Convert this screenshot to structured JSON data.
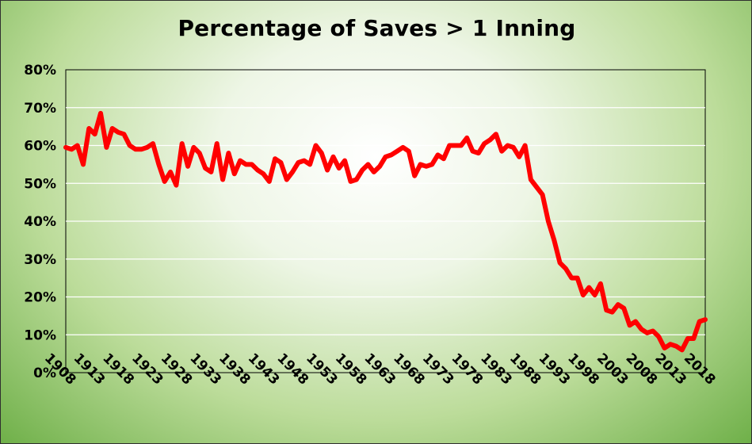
{
  "chart_data": {
    "type": "line",
    "title": "Percentage of Saves > 1 Inning",
    "xlabel": "",
    "ylabel": "",
    "ylim": [
      0,
      80
    ],
    "y_ticks": [
      "0%",
      "10%",
      "20%",
      "30%",
      "40%",
      "50%",
      "60%",
      "70%",
      "80%"
    ],
    "x_tick_labels": [
      "1908",
      "1913",
      "1918",
      "1923",
      "1928",
      "1933",
      "1938",
      "1943",
      "1948",
      "1953",
      "1958",
      "1963",
      "1968",
      "1973",
      "1978",
      "1983",
      "1988",
      "1993",
      "1998",
      "2003",
      "2008",
      "2013",
      "2018"
    ],
    "grid": true,
    "legend": "none",
    "line_color": "#ff0000",
    "series": [
      {
        "x": [
          1908,
          1909,
          1910,
          1911,
          1912,
          1913,
          1914,
          1915,
          1916,
          1917,
          1918,
          1919,
          1920,
          1921,
          1922,
          1923,
          1924,
          1925,
          1926,
          1927,
          1928,
          1929,
          1930,
          1931,
          1932,
          1933,
          1934,
          1935,
          1936,
          1937,
          1938,
          1939,
          1940,
          1941,
          1942,
          1943,
          1944,
          1945,
          1946,
          1947,
          1948,
          1949,
          1950,
          1951,
          1952,
          1953,
          1954,
          1955,
          1956,
          1957,
          1958,
          1959,
          1960,
          1961,
          1962,
          1963,
          1964,
          1965,
          1966,
          1967,
          1968,
          1969,
          1970,
          1971,
          1972,
          1973,
          1974,
          1975,
          1976,
          1977,
          1978,
          1979,
          1980,
          1981,
          1982,
          1983,
          1984,
          1985,
          1986,
          1987,
          1988,
          1989,
          1990,
          1991,
          1992,
          1993,
          1994,
          1995,
          1996,
          1997,
          1998,
          1999,
          2000,
          2001,
          2002,
          2003,
          2004,
          2005,
          2006,
          2007,
          2008,
          2009,
          2010,
          2011,
          2012,
          2013,
          2014,
          2015,
          2016,
          2017,
          2018
        ],
        "values": [
          59.5,
          59,
          60,
          55,
          64.5,
          63,
          68.5,
          59.5,
          64.5,
          63.5,
          63,
          60,
          59,
          59,
          59.5,
          60.5,
          55,
          50.5,
          53,
          49.5,
          60.5,
          54.5,
          59.5,
          58,
          54,
          53,
          60.5,
          51,
          58,
          52.5,
          56,
          55,
          55,
          53.5,
          52.5,
          50.5,
          56.5,
          55.5,
          51,
          53,
          55.5,
          56,
          55,
          60,
          58,
          53.5,
          57,
          54,
          56,
          50.5,
          51,
          53.5,
          55,
          53,
          54.5,
          57,
          57.5,
          58.5,
          59.5,
          58.5,
          52,
          55,
          54.5,
          55,
          57.5,
          56.5,
          60,
          60,
          60,
          62,
          58.5,
          58,
          60.5,
          61.5,
          63,
          58.5,
          60,
          59.5,
          57,
          60,
          51,
          49,
          47,
          40,
          35,
          29,
          27.5,
          25,
          25,
          20.5,
          22.5,
          20.5,
          23.5,
          16.5,
          16,
          18,
          17,
          12.5,
          13.5,
          11.5,
          10.5,
          11,
          9.5,
          6.5,
          7.5,
          7,
          6,
          9,
          9,
          13.5,
          14
        ]
      }
    ]
  }
}
